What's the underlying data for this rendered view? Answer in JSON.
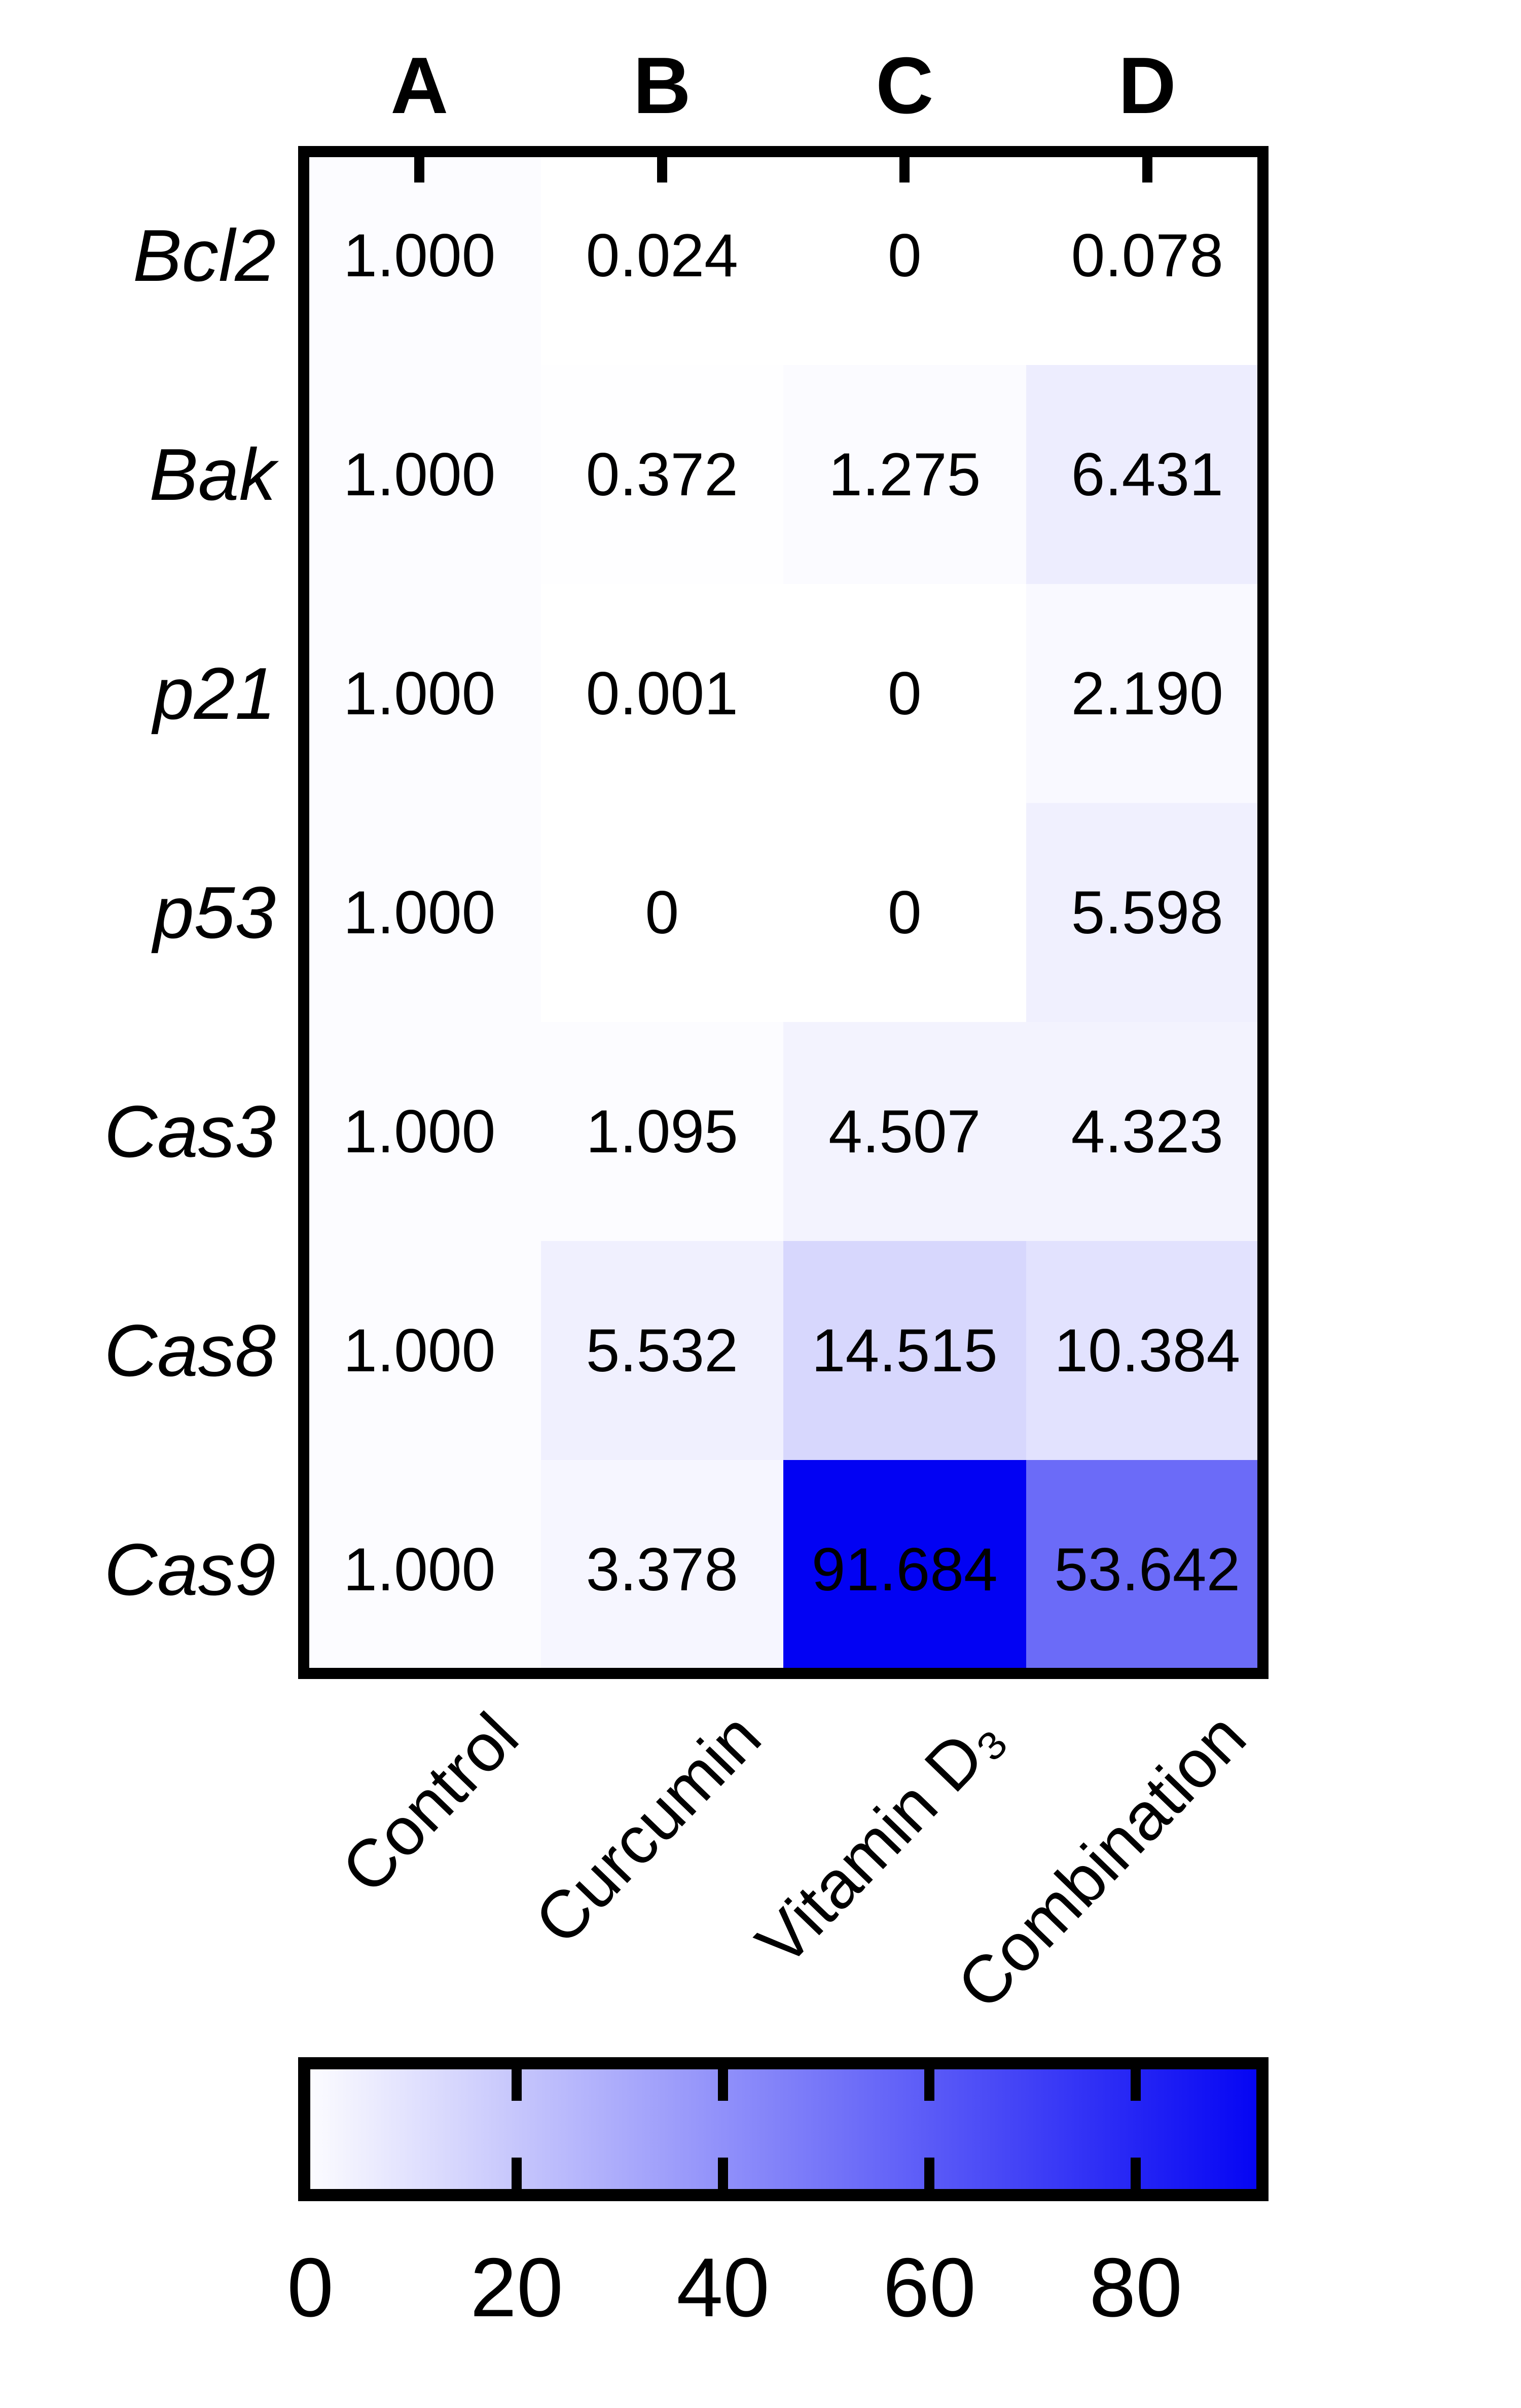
{
  "figure": {
    "column_headers": [
      "A",
      "B",
      "C",
      "D"
    ],
    "row_labels": [
      "Bcl2",
      "Bak",
      "p21",
      "p53",
      "Cas3",
      "Cas8",
      "Cas9"
    ],
    "treatment_labels": [
      "Control",
      "Curcumin",
      "Vitamin D₃",
      "Combination"
    ],
    "colorbar_tick_labels": [
      "0",
      "20",
      "40",
      "60",
      "80"
    ]
  },
  "chart_data": {
    "type": "heatmap",
    "rows": [
      "Bcl2",
      "Bak",
      "p21",
      "p53",
      "Cas3",
      "Cas8",
      "Cas9"
    ],
    "columns": [
      "A",
      "B",
      "C",
      "D"
    ],
    "column_names": [
      "Control",
      "Curcumin",
      "Vitamin D₃",
      "Combination"
    ],
    "values": [
      [
        1.0,
        0.024,
        0,
        0.078
      ],
      [
        1.0,
        0.372,
        1.275,
        6.431
      ],
      [
        1.0,
        0.001,
        0,
        2.19
      ],
      [
        1.0,
        0,
        0,
        5.598
      ],
      [
        1.0,
        1.095,
        4.507,
        4.323
      ],
      [
        1.0,
        5.532,
        14.515,
        10.384
      ],
      [
        1.0,
        3.378,
        91.684,
        53.642
      ]
    ],
    "cell_text": [
      [
        "1.000",
        "0.024",
        "0",
        "0.078"
      ],
      [
        "1.000",
        "0.372",
        "1.275",
        "6.431"
      ],
      [
        "1.000",
        "0.001",
        "0",
        "2.190"
      ],
      [
        "1.000",
        "0",
        "0",
        "5.598"
      ],
      [
        "1.000",
        "1.095",
        "4.507",
        "4.323"
      ],
      [
        "1.000",
        "5.532",
        "14.515",
        "10.384"
      ],
      [
        "1.000",
        "3.378",
        "91.684",
        "53.642"
      ]
    ],
    "colormap": {
      "min_color": "#ffffff",
      "max_color": "#0202f3",
      "vmin": 0
    },
    "colorbar": {
      "orientation": "horizontal",
      "position": "bottom",
      "ticks": [
        0,
        20,
        40,
        60,
        80
      ]
    },
    "legend": "none",
    "grid": "off",
    "title": "",
    "xlabel": "",
    "ylabel": ""
  }
}
